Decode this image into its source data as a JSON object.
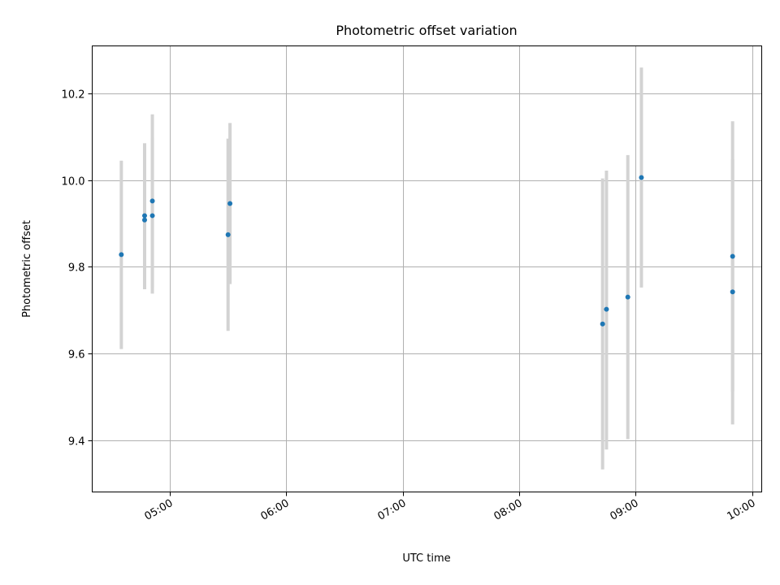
{
  "chart_data": {
    "type": "scatter",
    "title": "Photometric offset variation",
    "xlabel": "UTC time",
    "ylabel": "Photometric offset",
    "xlim": [
      "04:20",
      "10:05"
    ],
    "ylim": [
      9.28,
      10.31
    ],
    "xticks": [
      "05:00",
      "06:00",
      "07:00",
      "08:00",
      "09:00",
      "10:00"
    ],
    "yticks": [
      "9.4",
      "9.6",
      "9.8",
      "10.0",
      "10.2"
    ],
    "grid": true,
    "series": [
      {
        "color": "#1f77b4",
        "errorbar_color": "#d3d3d3",
        "points": [
          {
            "x": "04:35",
            "y": 9.828,
            "ylo": 9.61,
            "yhi": 10.045
          },
          {
            "x": "04:47",
            "y": 9.908,
            "ylo": 9.748,
            "yhi": 10.085
          },
          {
            "x": "04:47",
            "y": 9.918,
            "ylo": 9.748,
            "yhi": 10.085
          },
          {
            "x": "04:51",
            "y": 9.918,
            "ylo": 9.738,
            "yhi": 10.098
          },
          {
            "x": "04:51",
            "y": 9.952,
            "ylo": 9.752,
            "yhi": 10.152
          },
          {
            "x": "05:30",
            "y": 9.874,
            "ylo": 9.652,
            "yhi": 10.096
          },
          {
            "x": "05:31",
            "y": 9.946,
            "ylo": 9.76,
            "yhi": 10.132
          },
          {
            "x": "08:43",
            "y": 9.668,
            "ylo": 9.332,
            "yhi": 10.004
          },
          {
            "x": "08:45",
            "y": 9.702,
            "ylo": 9.378,
            "yhi": 10.022
          },
          {
            "x": "08:56",
            "y": 9.73,
            "ylo": 9.402,
            "yhi": 10.058
          },
          {
            "x": "09:03",
            "y": 10.006,
            "ylo": 9.752,
            "yhi": 10.26
          },
          {
            "x": "09:50",
            "y": 9.824,
            "ylo": 9.512,
            "yhi": 10.136
          },
          {
            "x": "09:50",
            "y": 9.742,
            "ylo": 9.436,
            "yhi": 10.048
          }
        ]
      }
    ]
  }
}
